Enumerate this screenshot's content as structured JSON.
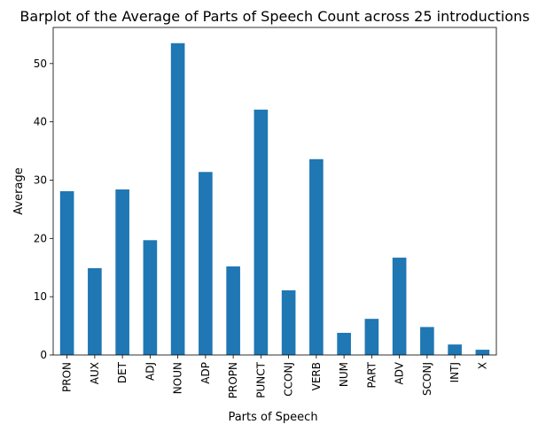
{
  "chart_data": {
    "type": "bar",
    "title": "Barplot of the Average of Parts of Speech Count across 25 introductions",
    "xlabel": "Parts of Speech",
    "ylabel": "Average",
    "categories": [
      "PRON",
      "AUX",
      "DET",
      "ADJ",
      "NOUN",
      "ADP",
      "PROPN",
      "PUNCT",
      "CCONJ",
      "VERB",
      "NUM",
      "PART",
      "ADV",
      "SCONJ",
      "INTJ",
      "X"
    ],
    "values": [
      28.1,
      14.9,
      28.4,
      19.7,
      53.5,
      31.4,
      15.2,
      42.1,
      11.1,
      33.6,
      3.8,
      6.2,
      16.7,
      4.8,
      1.8,
      0.9
    ],
    "ylim": [
      0,
      56.2
    ],
    "yticks": [
      0,
      10,
      20,
      30,
      40,
      50
    ],
    "bar_color": "#1f77b4",
    "grid": false,
    "legend": "none"
  }
}
